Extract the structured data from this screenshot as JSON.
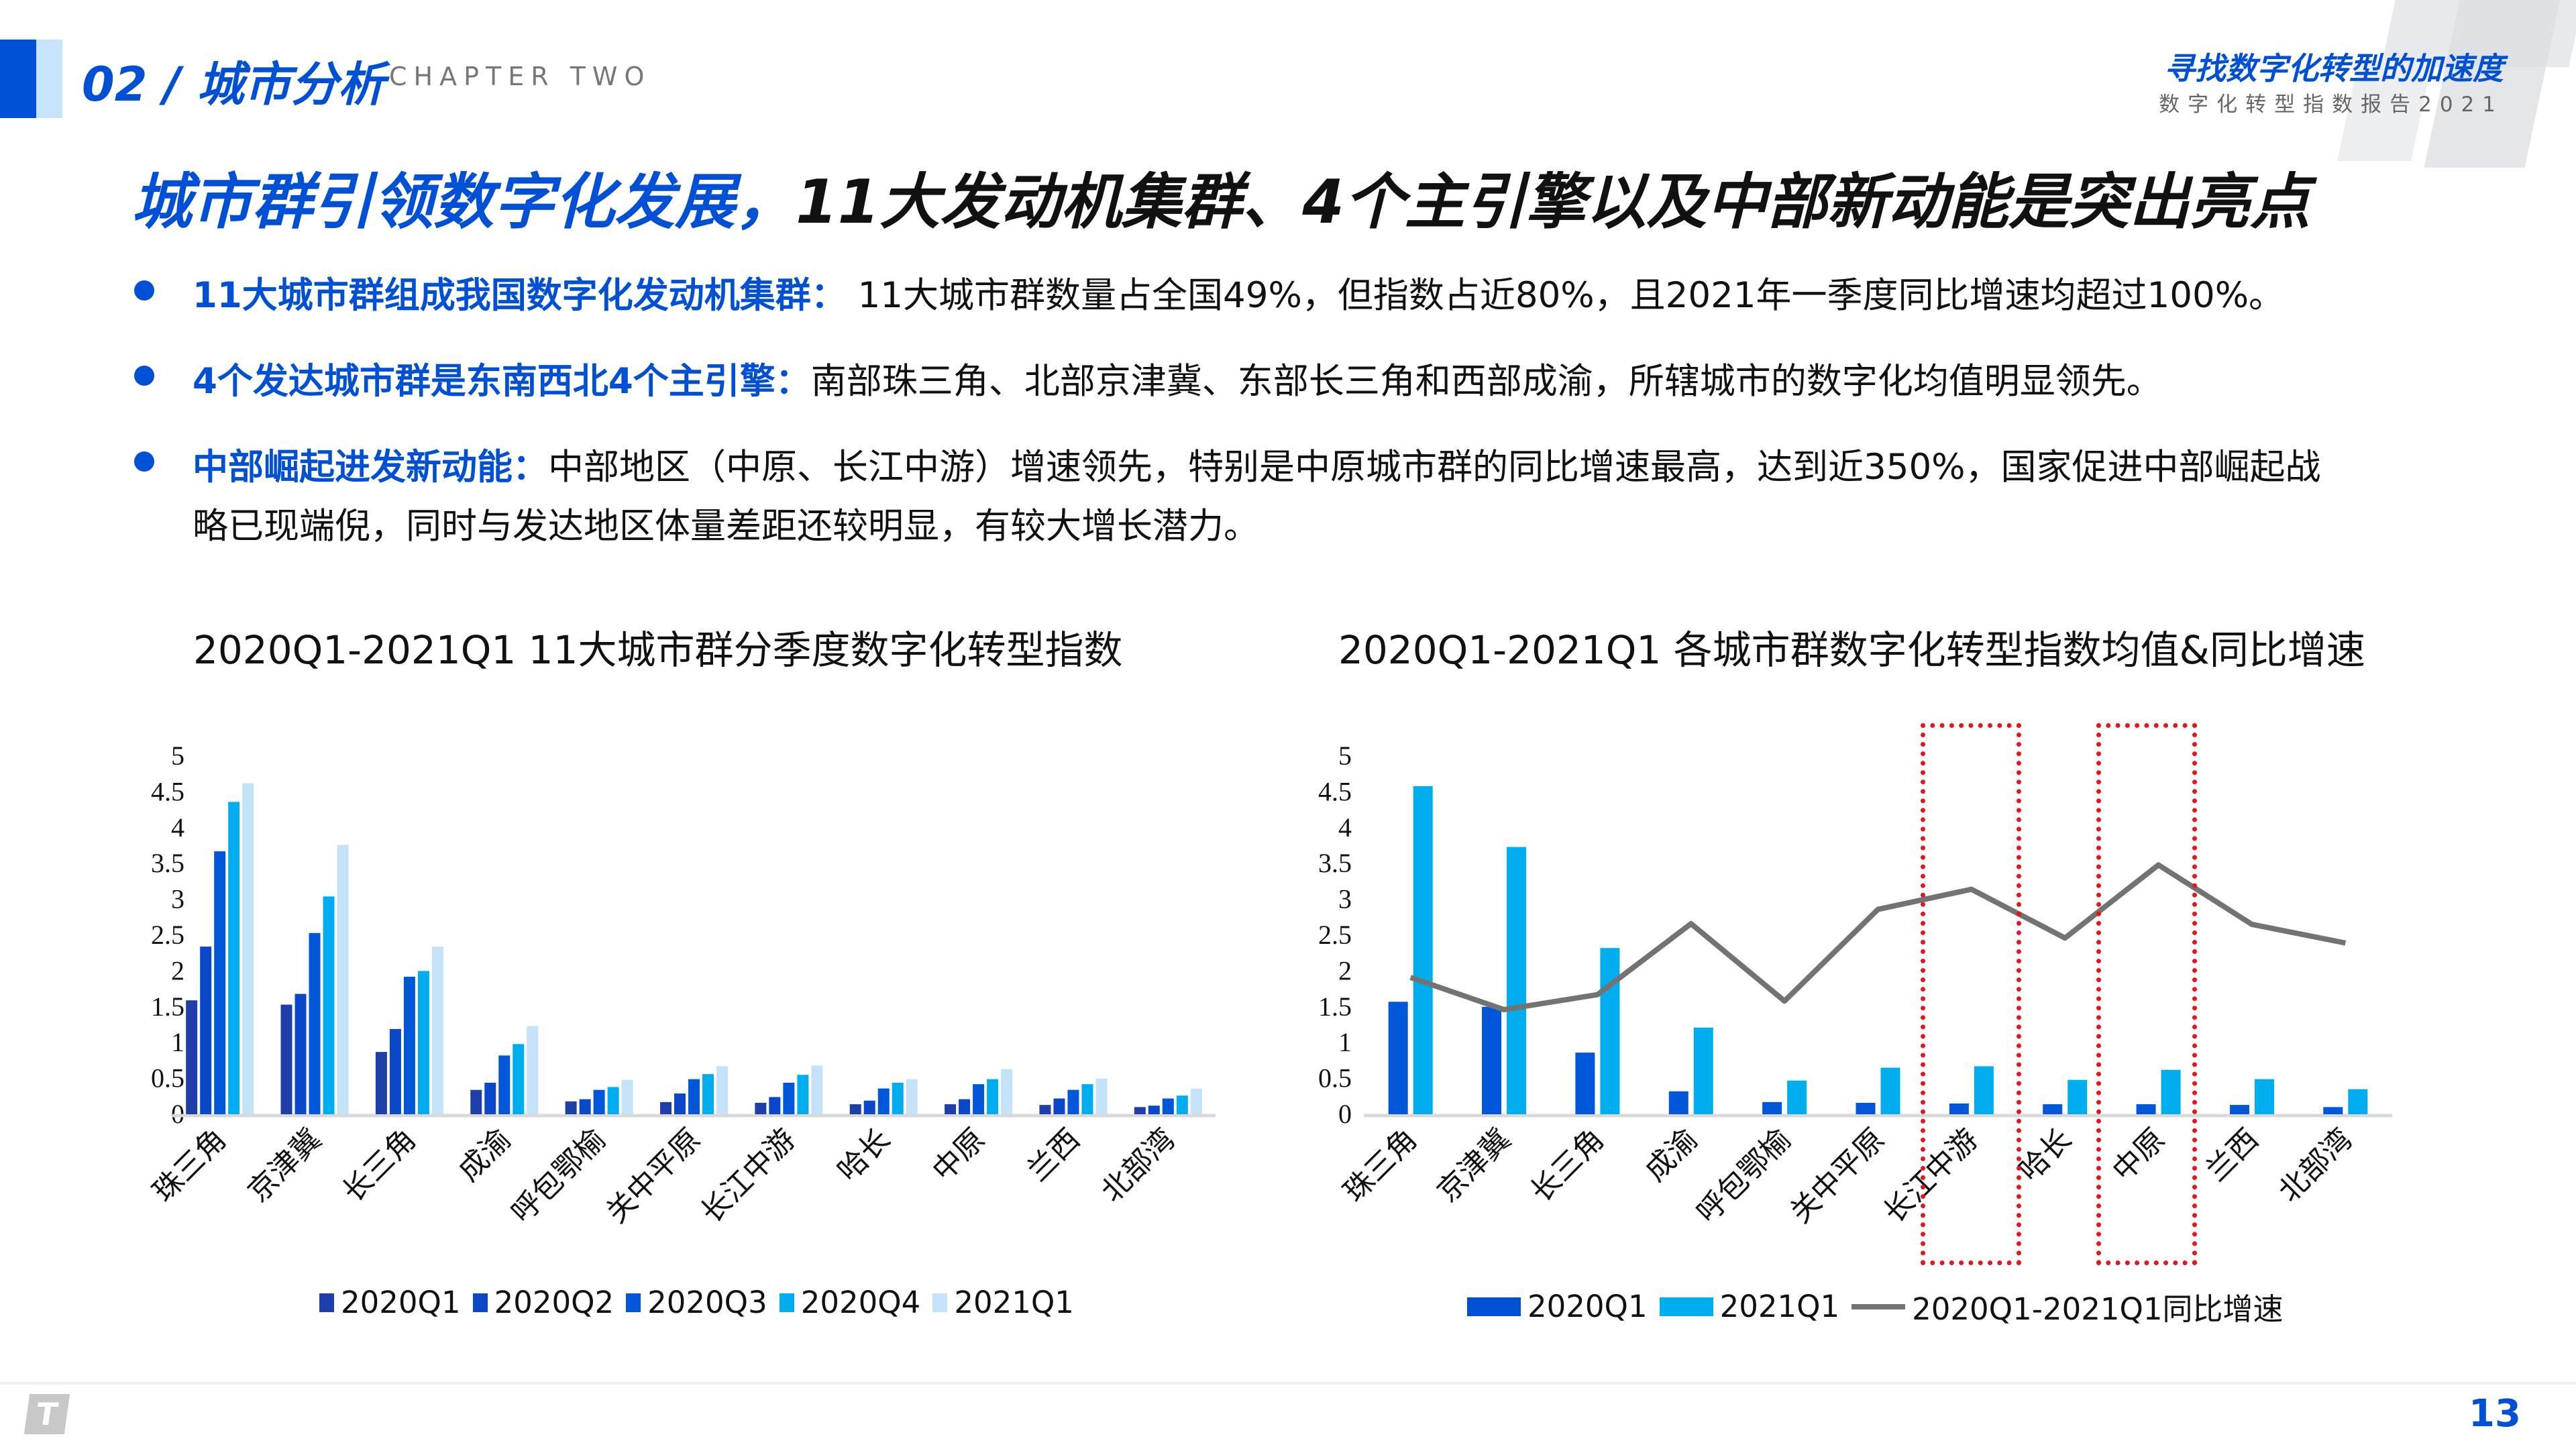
{
  "header": {
    "chapter": "02 / 城市分析",
    "chapter_en": "CHAPTER TWO",
    "report_title": "寻找数字化转型的加速度",
    "report_subtitle": "数字化转型指数报告2021"
  },
  "title": {
    "blue": "城市群引领数字化发展，",
    "black": "11大发动机集群、4个主引擎以及中部新动能是突出亮点"
  },
  "bullets": [
    {
      "label": "11大城市群组成我国数字化发动机集群：",
      "text": " 11大城市群数量占全国49%，但指数占近80%，且2021年一季度同比增速均超过100%。"
    },
    {
      "label": "4个发达城市群是东南西北4个主引擎：",
      "text": "南部珠三角、北部京津冀、东部长三角和西部成渝，所辖城市的数字化均值明显领先。"
    },
    {
      "label": "中部崛起进发新动能：",
      "text": "中部地区（中原、长江中游）增速领先，特别是中原城市群的同比增速最高，达到近350%，国家促进中部崛起战",
      "text_cont": "略已现端倪，同时与发达地区体量差距还较明显，有较大增长潜力。"
    }
  ],
  "colors": {
    "accent": "#0050d5",
    "q1": "#1f3fa8",
    "q2": "#0a47c9",
    "q3": "#0057d9",
    "q4": "#00aeef",
    "q5": "#c5e3f8",
    "line": "#737373",
    "highlight": "#e8141b"
  },
  "chart_data": [
    {
      "type": "bar",
      "title": "2020Q1-2021Q1 11大城市群分季度数字化转型指数",
      "categories": [
        "珠三角",
        "京津冀",
        "长三角",
        "成渝",
        "呼包鄂榆",
        "关中平原",
        "长江中游",
        "哈长",
        "中原",
        "兰西",
        "北部湾"
      ],
      "ylim": [
        0,
        5
      ],
      "yticks": [
        "0",
        "0.5",
        "1",
        "1.5",
        "2",
        "2.5",
        "3",
        "3.5",
        "4",
        "4.5",
        "5"
      ],
      "legend_position": "bottom",
      "grid": false,
      "series": [
        {
          "name": "2020Q1",
          "values": [
            1.59,
            1.53,
            0.87,
            0.34,
            0.18,
            0.17,
            0.16,
            0.14,
            0.14,
            0.13,
            0.1
          ]
        },
        {
          "name": "2020Q2",
          "values": [
            2.34,
            1.68,
            1.19,
            0.44,
            0.21,
            0.29,
            0.24,
            0.19,
            0.21,
            0.22,
            0.12
          ]
        },
        {
          "name": "2020Q3",
          "values": [
            3.67,
            2.53,
            1.92,
            0.82,
            0.34,
            0.49,
            0.44,
            0.36,
            0.42,
            0.34,
            0.22
          ]
        },
        {
          "name": "2020Q4",
          "values": [
            4.36,
            3.04,
            2.0,
            0.98,
            0.38,
            0.56,
            0.55,
            0.44,
            0.49,
            0.42,
            0.26
          ]
        },
        {
          "name": "2021Q1",
          "values": [
            4.62,
            3.76,
            2.34,
            1.23,
            0.48,
            0.67,
            0.68,
            0.49,
            0.63,
            0.5,
            0.36
          ]
        }
      ]
    },
    {
      "type": "bar+line",
      "title": "2020Q1-2021Q1 各城市群数字化转型指数均值&同比增速",
      "categories": [
        "珠三角",
        "京津冀",
        "长三角",
        "成渝",
        "呼包鄂榆",
        "关中平原",
        "长江中游",
        "哈长",
        "中原",
        "兰西",
        "北部湾"
      ],
      "ylim": [
        0,
        5
      ],
      "yticks": [
        "0",
        "0.5",
        "1",
        "1.5",
        "2",
        "2.5",
        "3",
        "3.5",
        "4",
        "4.5",
        "5"
      ],
      "legend_position": "bottom",
      "grid": false,
      "highlighted_categories": [
        "长江中游",
        "中原"
      ],
      "series": [
        {
          "name": "2020Q1",
          "type": "bar",
          "values": [
            1.57,
            1.5,
            0.86,
            0.32,
            0.17,
            0.16,
            0.15,
            0.14,
            0.14,
            0.13,
            0.1
          ]
        },
        {
          "name": "2021Q1",
          "type": "bar",
          "values": [
            4.58,
            3.73,
            2.32,
            1.21,
            0.47,
            0.65,
            0.67,
            0.48,
            0.62,
            0.49,
            0.35
          ]
        },
        {
          "name": "2020Q1-2021Q1同比增速",
          "type": "line",
          "values": [
            1.91,
            1.46,
            1.67,
            2.66,
            1.58,
            2.86,
            3.14,
            2.46,
            3.48,
            2.65,
            2.39
          ]
        }
      ]
    }
  ],
  "footer": {
    "page_number": "13",
    "logo_mark": "T"
  }
}
